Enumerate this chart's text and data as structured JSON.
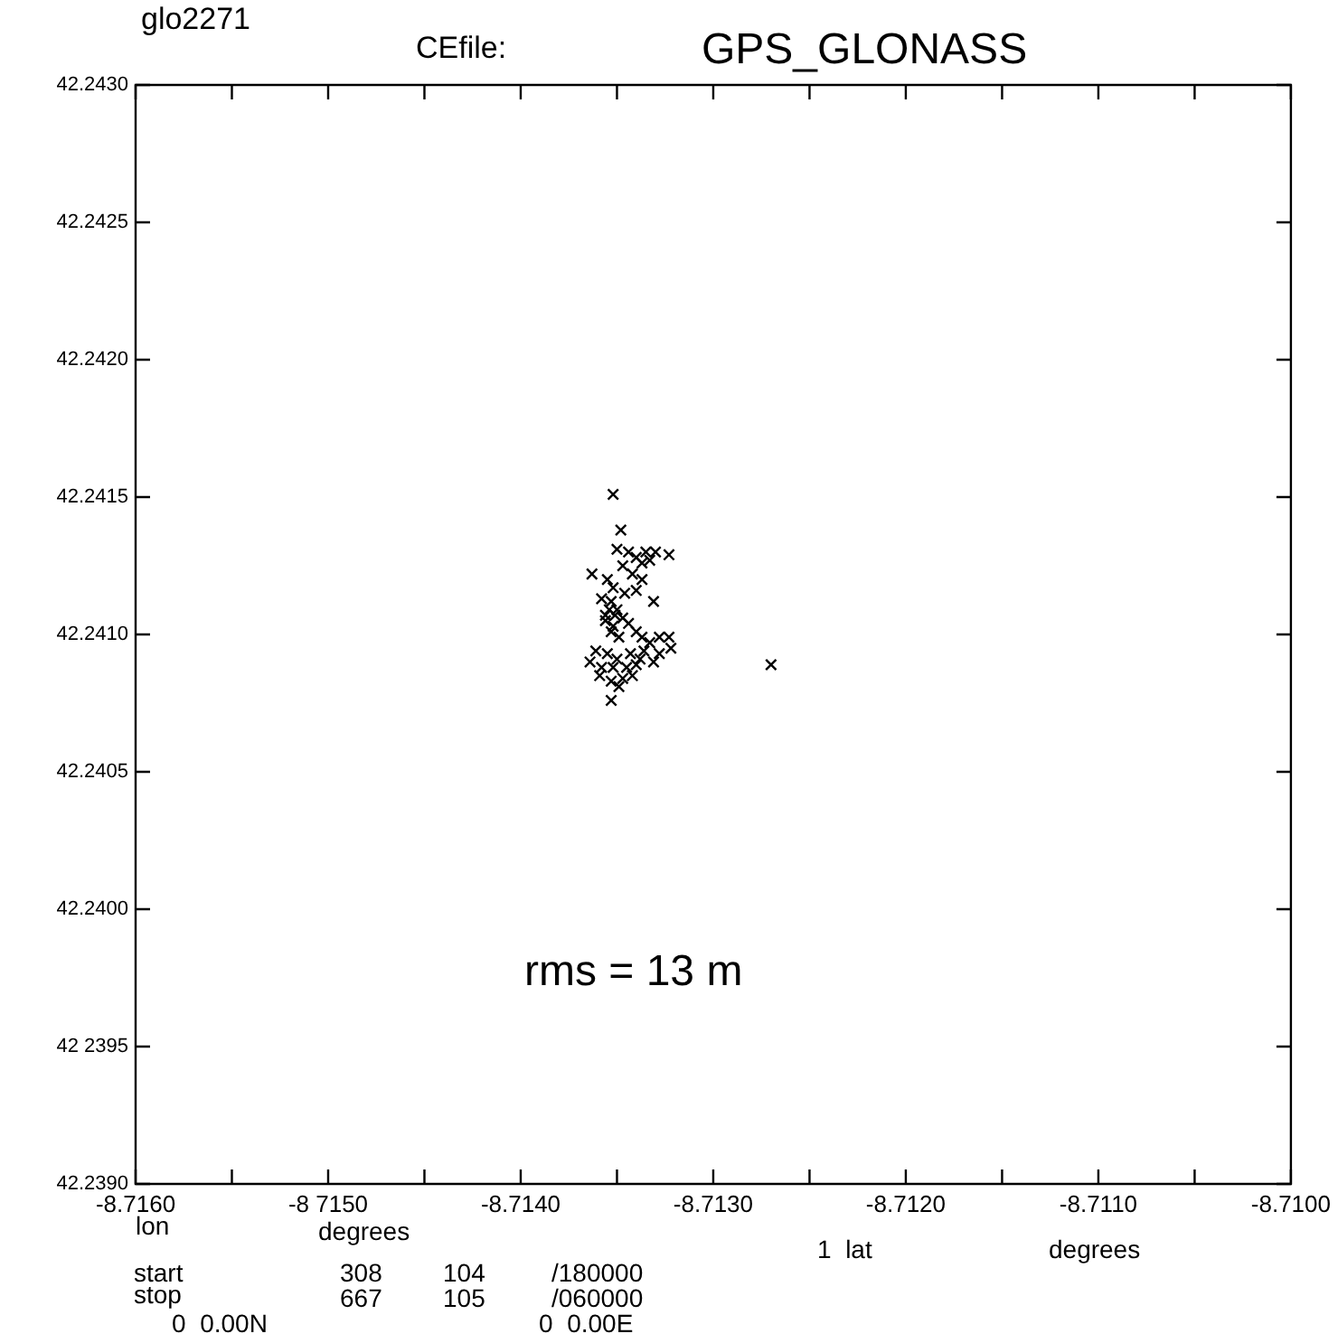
{
  "chart_data": {
    "type": "scatter",
    "title": "GPS_GLONASS",
    "xlabel": "lon",
    "annotations": [
      "glo2271",
      "CEfile:",
      "rms = 13 m",
      "degrees",
      "1  lat",
      "degrees",
      "start",
      "308",
      "104",
      "/180000",
      "stop",
      "667",
      "105",
      "/060000",
      "0  0.00N",
      "0  0.00E"
    ],
    "marker": "cross",
    "grid": false,
    "legend": false,
    "xlim": [
      -8.716,
      -8.71
    ],
    "xticks": [
      {
        "value": -8.716,
        "label": "-8.7160"
      },
      {
        "value": -8.7155,
        "label": null
      },
      {
        "value": -8.715,
        "label": "-8 7150"
      },
      {
        "value": -8.7145,
        "label": null
      },
      {
        "value": -8.714,
        "label": "-8.7140"
      },
      {
        "value": -8.7135,
        "label": null
      },
      {
        "value": -8.713,
        "label": "-8.7130"
      },
      {
        "value": -8.7125,
        "label": null
      },
      {
        "value": -8.712,
        "label": "-8.7120"
      },
      {
        "value": -8.7115,
        "label": null
      },
      {
        "value": -8.711,
        "label": "-8.7110"
      },
      {
        "value": -8.7105,
        "label": null
      },
      {
        "value": -8.71,
        "label": "-8.7100"
      }
    ],
    "ylim": [
      42.239,
      42.243
    ],
    "yticks": [
      {
        "value": 42.239,
        "label": "42.2390"
      },
      {
        "value": 42.2395,
        "label": "42 2395"
      },
      {
        "value": 42.24,
        "label": "42.2400"
      },
      {
        "value": 42.2405,
        "label": "42.2405"
      },
      {
        "value": 42.241,
        "label": "42.2410"
      },
      {
        "value": 42.2415,
        "label": "42.2415"
      },
      {
        "value": 42.242,
        "label": "42.2420"
      },
      {
        "value": 42.2425,
        "label": "42.2425"
      },
      {
        "value": 42.243,
        "label": "42.2430"
      }
    ],
    "series": [
      {
        "color": "#000000",
        "x": [
          -8.71352,
          -8.71348,
          -8.7135,
          -8.71344,
          -8.71335,
          -8.7133,
          -8.71323,
          -8.7134,
          -8.71347,
          -8.71337,
          -8.71333,
          -8.71363,
          -8.71355,
          -8.71342,
          -8.71337,
          -8.71352,
          -8.71346,
          -8.7134,
          -8.71331,
          -8.71358,
          -8.71354,
          -8.71351,
          -8.71347,
          -8.71356,
          -8.71352,
          -8.71344,
          -8.7134,
          -8.71337,
          -8.71353,
          -8.71349,
          -8.71328,
          -8.71323,
          -8.71333,
          -8.71322,
          -8.71361,
          -8.71355,
          -8.7135,
          -8.71343,
          -8.71338,
          -8.71336,
          -8.71328,
          -8.71364,
          -8.71358,
          -8.71352,
          -8.71345,
          -8.7134,
          -8.71347,
          -8.71353,
          -8.71359,
          -8.7127,
          -8.71353,
          -8.71349,
          -8.71342,
          -8.71331,
          -8.71356,
          -8.7135,
          -8.71353
        ],
        "values": [
          42.24151,
          42.24138,
          42.24131,
          42.2413,
          42.2413,
          42.2413,
          42.24129,
          42.24128,
          42.24125,
          42.24126,
          42.24127,
          42.24122,
          42.2412,
          42.24122,
          42.2412,
          42.24117,
          42.24115,
          42.24116,
          42.24112,
          42.24113,
          42.24109,
          42.24107,
          42.24106,
          42.24105,
          42.24103,
          42.24104,
          42.24101,
          42.24099,
          42.24101,
          42.24099,
          42.24099,
          42.24099,
          42.24097,
          42.24095,
          42.24094,
          42.24093,
          42.24091,
          42.24093,
          42.24091,
          42.24094,
          42.24093,
          42.2409,
          42.24088,
          42.24088,
          42.24088,
          42.24089,
          42.24084,
          42.24083,
          42.24085,
          42.24089,
          42.24076,
          42.24081,
          42.24085,
          42.2409,
          42.24107,
          42.24109,
          42.24112
        ]
      }
    ]
  }
}
